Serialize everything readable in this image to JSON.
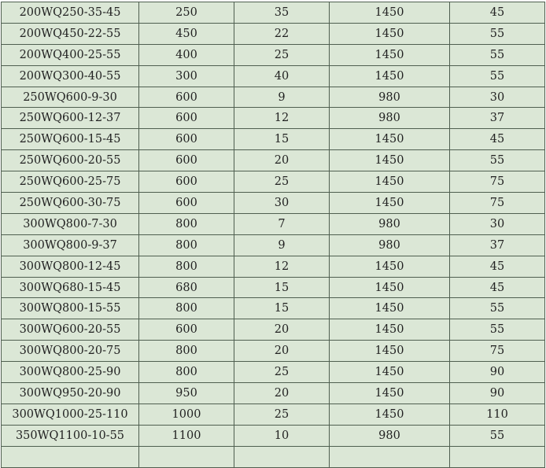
{
  "rows": [
    [
      "200WQ250-35-45",
      "250",
      "35",
      "1450",
      "45"
    ],
    [
      "200WQ450-22-55",
      "450",
      "22",
      "1450",
      "55"
    ],
    [
      "200WQ400-25-55",
      "400",
      "25",
      "1450",
      "55"
    ],
    [
      "200WQ300-40-55",
      "300",
      "40",
      "1450",
      "55"
    ],
    [
      "250WQ600-9-30",
      "600",
      "9",
      "980",
      "30"
    ],
    [
      "250WQ600-12-37",
      "600",
      "12",
      "980",
      "37"
    ],
    [
      "250WQ600-15-45",
      "600",
      "15",
      "1450",
      "45"
    ],
    [
      "250WQ600-20-55",
      "600",
      "20",
      "1450",
      "55"
    ],
    [
      "250WQ600-25-75",
      "600",
      "25",
      "1450",
      "75"
    ],
    [
      "250WQ600-30-75",
      "600",
      "30",
      "1450",
      "75"
    ],
    [
      "300WQ800-7-30",
      "800",
      "7",
      "980",
      "30"
    ],
    [
      "300WQ800-9-37",
      "800",
      "9",
      "980",
      "37"
    ],
    [
      "300WQ800-12-45",
      "800",
      "12",
      "1450",
      "45"
    ],
    [
      "300WQ680-15-45",
      "680",
      "15",
      "1450",
      "45"
    ],
    [
      "300WQ800-15-55",
      "800",
      "15",
      "1450",
      "55"
    ],
    [
      "300WQ600-20-55",
      "600",
      "20",
      "1450",
      "55"
    ],
    [
      "300WQ800-20-75",
      "800",
      "20",
      "1450",
      "75"
    ],
    [
      "300WQ800-25-90",
      "800",
      "25",
      "1450",
      "90"
    ],
    [
      "300WQ950-20-90",
      "950",
      "20",
      "1450",
      "90"
    ],
    [
      "300WQ1000-25-110",
      "1000",
      "25",
      "1450",
      "110"
    ],
    [
      "350WQ1100-10-55",
      "1100",
      "10",
      "980",
      "55"
    ]
  ]
}
